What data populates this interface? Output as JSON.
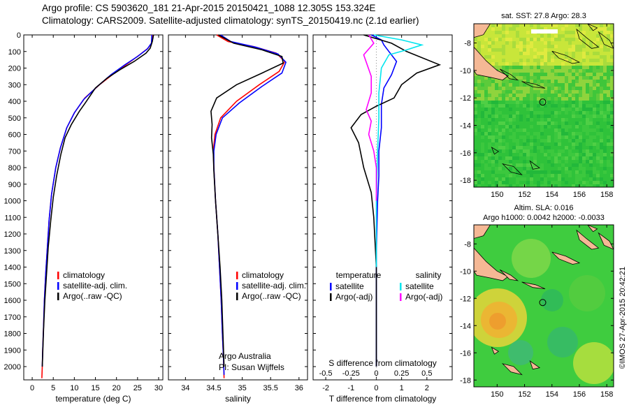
{
  "header": {
    "line1": "Argo profile: CS 5903620_181 21-Apr-2015 20150421_1088 12.305S 153.324E",
    "line2": "Climatology: CARS2009. Satellite-adjusted climatology: synTS_20150419.nc (2.1d earlier)"
  },
  "watermark": "©IMOS 27-Apr-2015 20:42:21",
  "colors": {
    "climatology": "#ff0000",
    "satellite": "#0000ff",
    "argo": "#000000",
    "sal_satellite": "#00e5ee",
    "sal_argo": "#ff00ff",
    "land": "#f5b895",
    "sst_ocean": "#2fc23a",
    "sla_ocean": "#3fcc3f"
  },
  "chart_data": [
    {
      "type": "line",
      "name": "temperature",
      "xlabel": "temperature (deg C)",
      "xlim": [
        -2,
        31
      ],
      "ylim": [
        0,
        2080
      ],
      "xticks": [
        "0",
        "5",
        "10",
        "15",
        "20",
        "25",
        "30"
      ],
      "xtick_values": [
        0,
        5,
        10,
        15,
        20,
        25,
        30
      ],
      "yticks": [
        "0",
        "100",
        "200",
        "300",
        "400",
        "500",
        "600",
        "700",
        "800",
        "900",
        "1000",
        "1100",
        "1200",
        "1300",
        "1400",
        "1500",
        "1600",
        "1700",
        "1800",
        "1900",
        "2000"
      ],
      "legend": [
        "climatology",
        "satellite-adj. clim.",
        "Argo(..raw -QC)"
      ],
      "series": [
        {
          "color": "red",
          "x": [
            28.6,
            28.3,
            27.5,
            25.5,
            22.8,
            19.5,
            16.0,
            12.5,
            10.0,
            8.2,
            6.7,
            5.6,
            4.6,
            4.0,
            3.6,
            3.2,
            2.9,
            2.7,
            2.5,
            2.4,
            2.3
          ],
          "y": [
            0,
            50,
            80,
            120,
            170,
            230,
            300,
            380,
            470,
            560,
            680,
            800,
            960,
            1120,
            1280,
            1440,
            1600,
            1760,
            1900,
            2000,
            2070
          ]
        },
        {
          "color": "blue",
          "x": [
            28.4,
            28.3,
            27.3,
            25.0,
            22.0,
            18.7,
            15.5,
            12.2,
            10.0,
            8.2,
            6.7,
            5.6,
            4.6,
            4.0,
            3.6,
            3.2,
            2.9,
            2.7,
            2.5,
            2.4
          ],
          "y": [
            0,
            50,
            85,
            130,
            180,
            240,
            310,
            390,
            470,
            560,
            680,
            800,
            960,
            1120,
            1280,
            1440,
            1600,
            1760,
            1900,
            2000
          ]
        },
        {
          "color": "black",
          "x": [
            28.8,
            28.5,
            28.0,
            27.0,
            24.2,
            20.8,
            17.8,
            15.0,
            12.6,
            11.2,
            9.3,
            7.8,
            6.8,
            5.8,
            5.0,
            4.4,
            3.8,
            3.4,
            3.0,
            2.7,
            2.4
          ],
          "y": [
            0,
            40,
            80,
            110,
            160,
            210,
            260,
            320,
            410,
            460,
            540,
            620,
            720,
            850,
            980,
            1120,
            1280,
            1440,
            1600,
            1780,
            2000
          ]
        }
      ]
    },
    {
      "type": "line",
      "name": "salinity",
      "xlabel": "salinity",
      "xlim": [
        33.7,
        36.15
      ],
      "ylim": [
        0,
        2080
      ],
      "xticks": [
        "34",
        "34.5",
        "35",
        "35.5",
        "36"
      ],
      "xtick_values": [
        34,
        34.5,
        35,
        35.5,
        36
      ],
      "legend": [
        "climatology",
        "satellite-adj. clim.",
        "Argo(..raw -QC)"
      ],
      "annotation": [
        "Argo Australia",
        "PI: Susan Wijffels"
      ],
      "series": [
        {
          "color": "red",
          "x": [
            34.55,
            34.75,
            35.2,
            35.6,
            35.75,
            35.65,
            35.3,
            34.9,
            34.62,
            34.52,
            34.49,
            34.5,
            34.53,
            34.57,
            34.6,
            34.63,
            34.65,
            34.67,
            34.68
          ],
          "y": [
            0,
            40,
            70,
            110,
            160,
            220,
            300,
            400,
            500,
            600,
            700,
            800,
            1000,
            1200,
            1400,
            1600,
            1800,
            1950,
            2070
          ]
        },
        {
          "color": "blue",
          "x": [
            34.62,
            34.8,
            35.25,
            35.63,
            35.77,
            35.7,
            35.35,
            34.95,
            34.65,
            34.54,
            34.5,
            34.5,
            34.53,
            34.57,
            34.6,
            34.63,
            34.65,
            34.67,
            34.68
          ],
          "y": [
            0,
            40,
            75,
            115,
            165,
            230,
            310,
            410,
            500,
            600,
            700,
            800,
            1000,
            1200,
            1400,
            1600,
            1800,
            1950,
            2050
          ]
        },
        {
          "color": "black",
          "x": [
            34.58,
            34.85,
            35.35,
            35.7,
            35.72,
            35.35,
            34.9,
            34.55,
            34.45,
            34.47,
            34.46,
            34.49,
            34.5,
            34.53,
            34.57,
            34.61,
            34.64,
            34.66,
            34.68
          ],
          "y": [
            0,
            50,
            90,
            130,
            170,
            230,
            300,
            380,
            460,
            540,
            620,
            720,
            820,
            1000,
            1200,
            1400,
            1600,
            1800,
            2000
          ]
        }
      ]
    },
    {
      "type": "line",
      "name": "difference",
      "xlabel": "T difference from climatology",
      "xlabel2": "S difference from climatology",
      "xlim": [
        -2.5,
        3.0
      ],
      "ylim": [
        0,
        2080
      ],
      "xticks": [
        "-2",
        "-1",
        "0",
        "1",
        "2"
      ],
      "xtick_values": [
        -2,
        -1,
        0,
        1,
        2
      ],
      "xticks2": [
        "-0.5",
        "-0.25",
        "0",
        "0.25",
        "0.5"
      ],
      "xtick2_values": [
        -2,
        -1,
        0,
        1,
        2
      ],
      "legend_left_title": "temperature",
      "legend_right_title": "salinity",
      "legend": [
        "satellite",
        "Argo(-adj)",
        "satellite",
        "Argo(-adj)"
      ],
      "series": [
        {
          "color": "blue",
          "x": [
            -0.2,
            0.2,
            0.3,
            0.5,
            0.8,
            0.6,
            0.3,
            0.2,
            0.2,
            0.1,
            0.1,
            0.05,
            0.0,
            0.0,
            0.0
          ],
          "y": [
            0,
            30,
            60,
            100,
            160,
            240,
            320,
            420,
            560,
            700,
            850,
            1000,
            1300,
            1600,
            2000
          ]
        },
        {
          "color": "black",
          "x": [
            -0.5,
            0.6,
            1.2,
            2.5,
            1.6,
            1.0,
            0.7,
            0.0,
            -0.6,
            -1.0,
            -0.7,
            -0.5,
            -0.2,
            -0.1,
            0.0,
            0.0
          ],
          "y": [
            0,
            50,
            100,
            180,
            230,
            300,
            380,
            430,
            480,
            560,
            650,
            800,
            950,
            1100,
            1400,
            2000
          ]
        },
        {
          "color": "cyan",
          "x": [
            -0.1,
            1.0,
            1.8,
            1.2,
            0.5,
            0.2,
            0.1,
            0.1,
            0.05,
            0.0,
            0.0
          ],
          "y": [
            0,
            30,
            60,
            90,
            120,
            200,
            350,
            500,
            700,
            1000,
            1400
          ]
        },
        {
          "color": "magenta",
          "x": [
            -0.3,
            -0.1,
            -0.5,
            -0.2,
            -0.2,
            -0.4,
            -0.2,
            -0.3,
            -0.1,
            0.0,
            0.0
          ],
          "y": [
            0,
            50,
            120,
            250,
            350,
            450,
            520,
            600,
            700,
            800,
            1000
          ]
        }
      ]
    }
  ],
  "maps": {
    "sst": {
      "title": "sat. SST: 27.8 Argo: 28.3",
      "xticks": [
        "150",
        "152",
        "154",
        "156",
        "158"
      ],
      "xtick_values": [
        150,
        152,
        154,
        156,
        158
      ],
      "yticks": [
        "-8",
        "-10",
        "-12",
        "-14",
        "-16",
        "-18"
      ],
      "ytick_values": [
        -8,
        -10,
        -12,
        -14,
        -16,
        -18
      ],
      "argo_lon": 153.324,
      "argo_lat": -12.305
    },
    "sla": {
      "title1": "Altim. SLA: 0.016",
      "title2": "Argo h1000: 0.0042 h2000: -0.0033",
      "xticks": [
        "150",
        "152",
        "154",
        "156",
        "158"
      ],
      "xtick_values": [
        150,
        152,
        154,
        156,
        158
      ],
      "yticks": [
        "-8",
        "-10",
        "-12",
        "-14",
        "-16",
        "-18"
      ],
      "ytick_values": [
        -8,
        -10,
        -12,
        -14,
        -16,
        -18
      ],
      "argo_lon": 153.324,
      "argo_lat": -12.305
    }
  }
}
